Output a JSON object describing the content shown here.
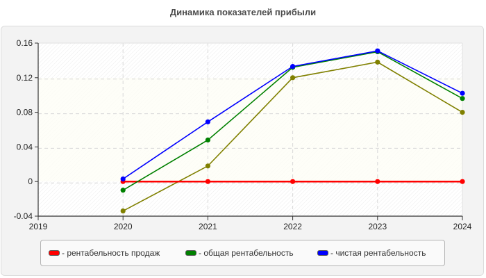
{
  "title": "Динамика показателей прибыли",
  "colors": {
    "sales": "#ff0000",
    "total": "#008000",
    "net": "#0000ff",
    "extra": "#808000",
    "panel_bg": "#f3f3f3",
    "grid": "#d8d8d8"
  },
  "legend": {
    "items": [
      {
        "label": "- рентабельность продаж",
        "color": "#ff0000"
      },
      {
        "label": "- общая рентабельность",
        "color": "#008000"
      },
      {
        "label": "- чистая рентабельность",
        "color": "#0000ff"
      }
    ]
  },
  "chart_data": {
    "type": "line",
    "title": "Динамика показателей прибыли",
    "xlabel": "",
    "ylabel": "",
    "x": [
      2019,
      2020,
      2021,
      2022,
      2023,
      2024
    ],
    "x_tick_labels": [
      "2019",
      "2020",
      "2021",
      "2022",
      "2023",
      "2024"
    ],
    "y_tick_labels": [
      "0.16",
      "0.12",
      "0.08",
      "0.04",
      "0",
      "-0.04"
    ],
    "ylim": [
      -0.04,
      0.16
    ],
    "xlim": [
      2019,
      2024
    ],
    "grid": true,
    "legend_position": "bottom",
    "series": [
      {
        "name": "рентабельность продаж",
        "color": "#ff0000",
        "x": [
          2020,
          2021,
          2022,
          2023,
          2024
        ],
        "values": [
          0,
          0,
          0,
          0,
          0
        ]
      },
      {
        "name": "общая рентабельность",
        "color": "#008000",
        "x": [
          2020,
          2021,
          2022,
          2023,
          2024
        ],
        "values": [
          -0.01,
          0.048,
          0.132,
          0.15,
          0.096
        ]
      },
      {
        "name": "чистая рентабельность",
        "color": "#0000ff",
        "x": [
          2020,
          2021,
          2022,
          2023,
          2024
        ],
        "values": [
          0.003,
          0.069,
          0.133,
          0.151,
          0.102
        ]
      },
      {
        "name": "",
        "color": "#808000",
        "x": [
          2020,
          2021,
          2022,
          2023,
          2024
        ],
        "values": [
          -0.034,
          0.018,
          0.12,
          0.138,
          0.08
        ]
      }
    ]
  }
}
